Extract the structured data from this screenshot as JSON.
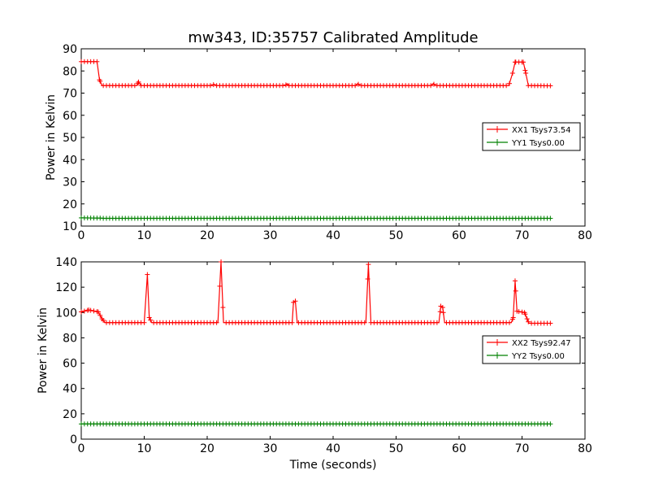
{
  "chart_data": [
    {
      "type": "line",
      "title": "mw343, ID:35757 Calibrated Amplitude",
      "xlabel": "",
      "ylabel": "Power in Kelvin",
      "xlim": [
        0,
        80
      ],
      "ylim": [
        10,
        90
      ],
      "xticks": [
        "0",
        "10",
        "20",
        "30",
        "40",
        "50",
        "60",
        "70",
        "80"
      ],
      "yticks": [
        "10",
        "20",
        "30",
        "40",
        "50",
        "60",
        "70",
        "80",
        "90"
      ],
      "legend_position": "right",
      "grid": false,
      "series": [
        {
          "name": "XX1 Tsys73.54",
          "color": "#ff0000",
          "baseline": 73.3,
          "points": [
            [
              0,
              84.2
            ],
            [
              2.5,
              84.2
            ],
            [
              2.9,
              76
            ],
            [
              3.3,
              73.4
            ],
            [
              8.8,
              73.4
            ],
            [
              9.1,
              75.0
            ],
            [
              9.5,
              73.4
            ],
            [
              20.8,
              73.4
            ],
            [
              21.1,
              74.0
            ],
            [
              21.5,
              73.4
            ],
            [
              32.4,
              73.4
            ],
            [
              32.7,
              74.3
            ],
            [
              33.0,
              73.4
            ],
            [
              43.6,
              73.4
            ],
            [
              43.9,
              74.3
            ],
            [
              44.2,
              73.4
            ],
            [
              55.6,
              73.4
            ],
            [
              55.9,
              74.3
            ],
            [
              56.2,
              73.4
            ],
            [
              67.9,
              73.4
            ],
            [
              68.5,
              79
            ],
            [
              68.9,
              84.0
            ],
            [
              70.2,
              84.0
            ],
            [
              70.6,
              79
            ],
            [
              71.0,
              73.4
            ],
            [
              74.5,
              73.3
            ]
          ]
        },
        {
          "name": "YY1 Tsys0.00",
          "color": "#008000",
          "baseline": 13.5,
          "points": [
            [
              0,
              13.7
            ],
            [
              3.0,
              13.6
            ],
            [
              3.5,
              13.5
            ],
            [
              74.5,
              13.5
            ]
          ]
        }
      ]
    },
    {
      "type": "line",
      "title": "",
      "xlabel": "Time (seconds)",
      "ylabel": "Power in Kelvin",
      "xlim": [
        0,
        80
      ],
      "ylim": [
        0,
        140
      ],
      "xticks": [
        "0",
        "10",
        "20",
        "30",
        "40",
        "50",
        "60",
        "70",
        "80"
      ],
      "yticks": [
        "0",
        "20",
        "40",
        "60",
        "80",
        "100",
        "120",
        "140"
      ],
      "legend_position": "right",
      "grid": false,
      "series": [
        {
          "name": "XX2 Tsys92.47",
          "color": "#ff0000",
          "baseline": 91.5,
          "points": [
            [
              0,
              100.5
            ],
            [
              1.2,
              102
            ],
            [
              2.7,
              100.5
            ],
            [
              3.3,
              95
            ],
            [
              3.8,
              92
            ],
            [
              10.0,
              92
            ],
            [
              10.5,
              130
            ],
            [
              10.8,
              96
            ],
            [
              11.2,
              92
            ],
            [
              21.7,
              92
            ],
            [
              22.2,
              140
            ],
            [
              22.6,
              92
            ],
            [
              33.5,
              92
            ],
            [
              33.7,
              108
            ],
            [
              34.0,
              109
            ],
            [
              34.3,
              92
            ],
            [
              45.2,
              92
            ],
            [
              45.6,
              138
            ],
            [
              46.0,
              92
            ],
            [
              56.8,
              92
            ],
            [
              57.1,
              105
            ],
            [
              57.4,
              104
            ],
            [
              57.7,
              92
            ],
            [
              68.3,
              92
            ],
            [
              68.6,
              96
            ],
            [
              68.9,
              125
            ],
            [
              69.2,
              101
            ],
            [
              70.4,
              100
            ],
            [
              70.8,
              95
            ],
            [
              71.1,
              91.5
            ],
            [
              74.5,
              91.5
            ]
          ]
        },
        {
          "name": "YY2 Tsys0.00",
          "color": "#008000",
          "baseline": 12,
          "points": [
            [
              0,
              12
            ],
            [
              74.5,
              12
            ]
          ]
        }
      ]
    }
  ]
}
